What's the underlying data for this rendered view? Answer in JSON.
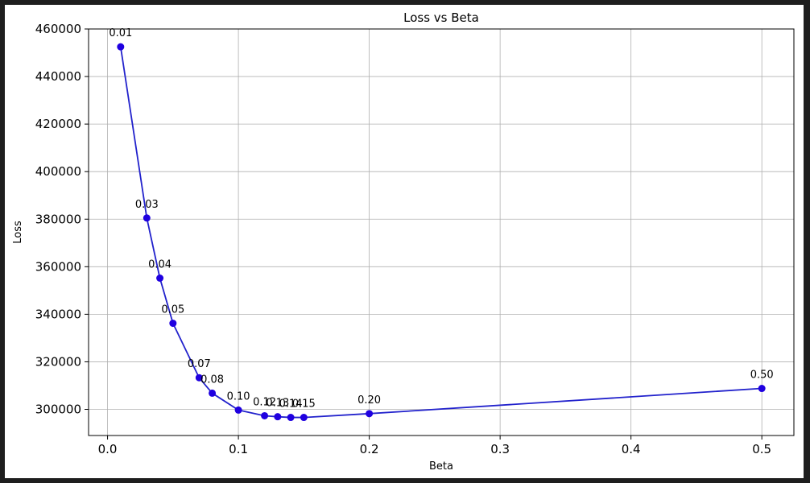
{
  "chart_data": {
    "type": "line",
    "title": "Loss vs Beta",
    "xlabel": "Beta",
    "ylabel": "Loss",
    "xlim": [
      -0.0145,
      0.5245
    ],
    "ylim": [
      289000,
      460000
    ],
    "xticks": [
      0.0,
      0.1,
      0.2,
      0.3,
      0.4,
      0.5
    ],
    "xtick_labels": [
      "0.0",
      "0.1",
      "0.2",
      "0.3",
      "0.4",
      "0.5"
    ],
    "yticks": [
      300000,
      320000,
      340000,
      360000,
      380000,
      400000,
      420000,
      440000,
      460000
    ],
    "ytick_labels": [
      "300000",
      "320000",
      "340000",
      "360000",
      "380000",
      "400000",
      "420000",
      "440000",
      "460000"
    ],
    "grid": true,
    "line_color": "#2222cc",
    "marker_color": "#1f00e0",
    "series": [
      {
        "x": [
          0.01,
          0.03,
          0.04,
          0.05,
          0.07,
          0.08,
          0.1,
          0.12,
          0.13,
          0.14,
          0.15,
          0.2,
          0.5
        ],
        "y": [
          452500,
          380500,
          355200,
          336200,
          313300,
          306800,
          299700,
          297300,
          296900,
          296600,
          296600,
          298200,
          308800
        ],
        "labels": [
          "0.01",
          "0.03",
          "0.04",
          "0.05",
          "0.07",
          "0.08",
          "0.10",
          "0.12",
          "0.13",
          "0.14",
          "0.15",
          "0.20",
          "0.50"
        ]
      }
    ]
  }
}
